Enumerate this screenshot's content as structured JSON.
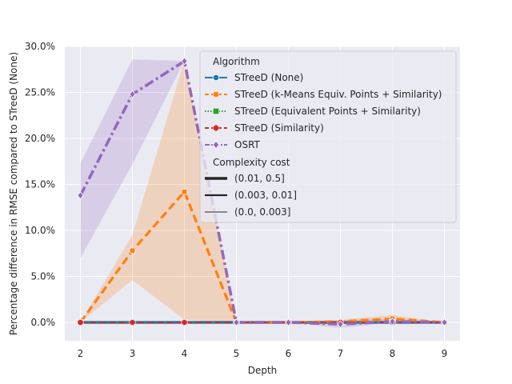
{
  "chart_data": {
    "type": "line",
    "title": "",
    "xlabel": "Depth",
    "ylabel": "Percentage difference in RMSE compared to STreeD (None)",
    "x_ticks": [
      "2",
      "3",
      "4",
      "5",
      "6",
      "7",
      "8",
      "9"
    ],
    "y_ticks": [
      "0.0%",
      "5.0%",
      "10.0%",
      "15.0%",
      "20.0%",
      "25.0%",
      "30.0%"
    ],
    "xlim": [
      1.7,
      9.3
    ],
    "ylim": [
      -2,
      30
    ],
    "grid": true,
    "legend_placement": "top-right",
    "legend_title_algorithm": "Algorithm",
    "legend_title_complexity": "Complexity cost",
    "series": [
      {
        "name": "STreeD (None)",
        "color": "#1f77b4",
        "marker": "circle",
        "x": [
          2,
          3,
          4,
          5,
          6,
          7,
          8,
          9
        ],
        "y": [
          0,
          0,
          0,
          0,
          0,
          0,
          0,
          0
        ]
      },
      {
        "name": "STreeD (k-Means Equiv. Points + Similarity)",
        "color": "#ff7f0e",
        "marker": "x",
        "x": [
          2,
          3,
          4,
          5,
          6,
          7,
          8,
          9
        ],
        "y": [
          0.0,
          7.8,
          14.2,
          0.0,
          0.0,
          0.1,
          0.4,
          0.0
        ],
        "ci_low": [
          0.0,
          4.6,
          0.3,
          0.0,
          0.0,
          -0.2,
          0.0,
          0.0
        ],
        "ci_high": [
          0.0,
          9.5,
          28.5,
          0.0,
          0.0,
          0.3,
          0.8,
          0.0
        ]
      },
      {
        "name": "STreeD (Equivalent Points + Similarity)",
        "color": "#2ca02c",
        "marker": "square",
        "x": [
          2,
          3,
          4,
          5,
          6,
          7,
          8,
          9
        ],
        "y": [
          0,
          0,
          0,
          0,
          0,
          0,
          0,
          0
        ]
      },
      {
        "name": "STreeD (Similarity)",
        "color": "#d62728",
        "marker": "plus",
        "x": [
          2,
          3,
          4,
          5,
          6,
          7,
          8,
          9
        ],
        "y": [
          0,
          0,
          0,
          0,
          0,
          0,
          0,
          0
        ]
      },
      {
        "name": "OSRT",
        "color": "#9467bd",
        "marker": "diamond",
        "x": [
          2,
          3,
          4,
          5,
          6,
          7,
          8,
          9
        ],
        "y": [
          13.8,
          24.8,
          28.4,
          0.0,
          0.0,
          -0.2,
          0.1,
          0.0
        ],
        "ci_low": [
          7.0,
          17.2,
          28.4,
          0.0,
          0.0,
          -0.6,
          0.0,
          0.0
        ],
        "ci_high": [
          17.3,
          28.6,
          28.4,
          0.0,
          0.0,
          0.2,
          0.4,
          0.0
        ]
      }
    ],
    "complexity_entries": [
      "(0.01, 0.5]",
      "(0.003, 0.01]",
      "(0.0, 0.003]"
    ]
  }
}
